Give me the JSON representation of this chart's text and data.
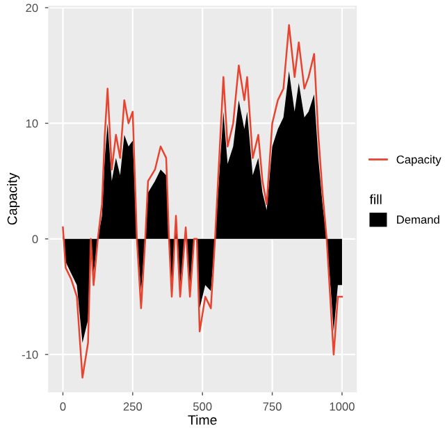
{
  "chart_data": {
    "type": "line",
    "xlabel": "Time",
    "ylabel": "Capacity",
    "legend_title": "fill",
    "x": [
      0,
      10,
      30,
      50,
      70,
      90,
      100,
      110,
      125,
      140,
      150,
      160,
      175,
      190,
      205,
      220,
      235,
      250,
      265,
      280,
      295,
      305,
      330,
      350,
      370,
      380,
      390,
      405,
      420,
      440,
      455,
      470,
      480,
      490,
      510,
      530,
      545,
      560,
      575,
      590,
      610,
      630,
      650,
      660,
      680,
      700,
      715,
      730,
      750,
      770,
      790,
      810,
      830,
      845,
      865,
      880,
      900,
      915,
      930,
      945,
      960,
      970,
      985,
      1000
    ],
    "series": [
      {
        "name": "Demand",
        "type": "area",
        "color": "#000000",
        "values": [
          0.5,
          -2,
          -3,
          -4,
          -9,
          -7,
          0,
          -3,
          0,
          2,
          7,
          10,
          5,
          7,
          5.5,
          9,
          8,
          8.5,
          0,
          -4.5,
          0,
          4,
          5,
          6,
          5.5,
          0,
          -4,
          1.5,
          -4,
          0.5,
          -4,
          0,
          0,
          -6,
          -4,
          -4.5,
          0,
          5.5,
          11,
          6.5,
          8,
          12,
          9.5,
          11,
          5.5,
          7,
          4,
          2.5,
          8,
          9.5,
          10.5,
          14.5,
          11,
          13.5,
          10.5,
          11,
          12.5,
          7,
          3,
          0,
          -4.5,
          -8,
          -4,
          -4
        ]
      },
      {
        "name": "Capacity",
        "color": "#e8432f",
        "values": [
          1,
          -2.5,
          -3.5,
          -5,
          -12,
          -9,
          0,
          -4,
          0,
          3,
          9,
          13,
          6,
          9,
          7,
          12,
          10,
          11,
          0,
          -6,
          0,
          5,
          6,
          8,
          7,
          0,
          -5,
          2,
          -5,
          1,
          -5,
          0,
          0,
          -8,
          -5,
          -6,
          0,
          7,
          14,
          8,
          10,
          15,
          12,
          14,
          7,
          9,
          5,
          3,
          10,
          12,
          13,
          18.5,
          14,
          17,
          13,
          14,
          16,
          9,
          4,
          0,
          -6,
          -10,
          -5,
          -5
        ]
      }
    ],
    "xlim": [
      -50,
      1050
    ],
    "xticks": [
      0,
      250,
      500,
      750,
      1000
    ],
    "ylim": [
      -13.2,
      20.1
    ],
    "yticks": [
      -10,
      0,
      10,
      20
    ],
    "grid": true,
    "legend": "right"
  }
}
